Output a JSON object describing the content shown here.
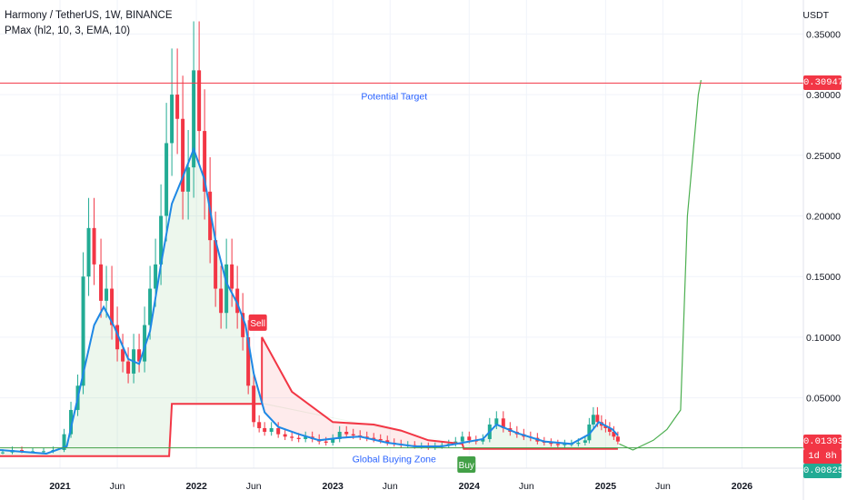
{
  "chart_data": {
    "type": "candlestick",
    "title": "Harmony / TetherUS, 1W, BINANCE",
    "subtitle": "PMax (hl2, 10, 3, EMA, 10)",
    "currency": "USDT",
    "y_ticks": [
      "0.35000",
      "0.30000",
      "0.25000",
      "0.20000",
      "0.15000",
      "0.10000",
      "0.05000"
    ],
    "y_tick_values": [
      0.35,
      0.3,
      0.25,
      0.2,
      0.15,
      0.1,
      0.05
    ],
    "ylim": [
      -0.008,
      0.378
    ],
    "x_ticks": [
      "2021",
      "Jun",
      "2022",
      "Jun",
      "2023",
      "Jun",
      "2024",
      "Jun",
      "2025",
      "Jun",
      "2026"
    ],
    "x_tick_values": [
      2021.0,
      2021.42,
      2022.0,
      2022.42,
      2023.0,
      2023.42,
      2024.0,
      2024.42,
      2025.0,
      2025.42,
      2026.0
    ],
    "xlim": [
      2020.56,
      2026.45
    ],
    "price_tags": [
      {
        "label": "0.30947",
        "value": 0.30947,
        "color": "#f23645"
      },
      {
        "label": "0.01393",
        "value": 0.01393,
        "color": "#f23645"
      },
      {
        "label": "1d 8h",
        "value": 0.0014,
        "color": "#f23645"
      },
      {
        "label": "0.00825",
        "value": 0.00825,
        "color": "#22ab94"
      }
    ],
    "annotations": [
      {
        "text": "Potential Target",
        "x": 2023.45,
        "y": 0.299,
        "color": "#2962ff"
      },
      {
        "text": "Global Buying Zone",
        "x": 2023.45,
        "y": 0.0,
        "color": "#2962ff"
      }
    ],
    "signals": [
      {
        "text": "Sell",
        "x": 2022.45,
        "y": 0.112,
        "color": "#f23645"
      },
      {
        "text": "Buy",
        "x": 2023.98,
        "y": -0.005,
        "color": "#43a047"
      }
    ],
    "target_line": {
      "value": 0.30947,
      "color": "#f23645"
    },
    "zone_line": {
      "value": 0.0088,
      "color": "#43a047"
    },
    "candles_close": [
      [
        2020.58,
        0.005
      ],
      [
        2020.65,
        0.007
      ],
      [
        2020.72,
        0.006
      ],
      [
        2020.8,
        0.006
      ],
      [
        2020.88,
        0.006
      ],
      [
        2020.95,
        0.007
      ],
      [
        2021.03,
        0.02
      ],
      [
        2021.08,
        0.04
      ],
      [
        2021.13,
        0.06
      ],
      [
        2021.17,
        0.15
      ],
      [
        2021.21,
        0.19
      ],
      [
        2021.25,
        0.16
      ],
      [
        2021.3,
        0.13
      ],
      [
        2021.34,
        0.14
      ],
      [
        2021.38,
        0.11
      ],
      [
        2021.42,
        0.09
      ],
      [
        2021.46,
        0.08
      ],
      [
        2021.5,
        0.07
      ],
      [
        2021.54,
        0.09
      ],
      [
        2021.58,
        0.08
      ],
      [
        2021.62,
        0.11
      ],
      [
        2021.66,
        0.14
      ],
      [
        2021.7,
        0.16
      ],
      [
        2021.74,
        0.2
      ],
      [
        2021.78,
        0.26
      ],
      [
        2021.82,
        0.3
      ],
      [
        2021.86,
        0.28
      ],
      [
        2021.9,
        0.22
      ],
      [
        2021.94,
        0.24
      ],
      [
        2021.98,
        0.32
      ],
      [
        2022.02,
        0.27
      ],
      [
        2022.06,
        0.22
      ],
      [
        2022.1,
        0.18
      ],
      [
        2022.14,
        0.14
      ],
      [
        2022.18,
        0.12
      ],
      [
        2022.22,
        0.16
      ],
      [
        2022.26,
        0.14
      ],
      [
        2022.3,
        0.12
      ],
      [
        2022.34,
        0.1
      ],
      [
        2022.38,
        0.06
      ],
      [
        2022.42,
        0.03
      ],
      [
        2022.46,
        0.025
      ],
      [
        2022.5,
        0.022
      ],
      [
        2022.55,
        0.025
      ],
      [
        2022.6,
        0.02
      ],
      [
        2022.65,
        0.018
      ],
      [
        2022.7,
        0.017
      ],
      [
        2022.75,
        0.016
      ],
      [
        2022.8,
        0.018
      ],
      [
        2022.85,
        0.016
      ],
      [
        2022.9,
        0.014
      ],
      [
        2022.95,
        0.013
      ],
      [
        2023.0,
        0.016
      ],
      [
        2023.05,
        0.022
      ],
      [
        2023.1,
        0.02
      ],
      [
        2023.15,
        0.019
      ],
      [
        2023.2,
        0.018
      ],
      [
        2023.25,
        0.017
      ],
      [
        2023.3,
        0.016
      ],
      [
        2023.35,
        0.015
      ],
      [
        2023.4,
        0.013
      ],
      [
        2023.45,
        0.012
      ],
      [
        2023.5,
        0.011
      ],
      [
        2023.55,
        0.011
      ],
      [
        2023.6,
        0.01
      ],
      [
        2023.65,
        0.01
      ],
      [
        2023.7,
        0.009
      ],
      [
        2023.75,
        0.01
      ],
      [
        2023.8,
        0.011
      ],
      [
        2023.85,
        0.012
      ],
      [
        2023.9,
        0.014
      ],
      [
        2023.95,
        0.018
      ],
      [
        2024.0,
        0.015
      ],
      [
        2024.05,
        0.014
      ],
      [
        2024.1,
        0.016
      ],
      [
        2024.15,
        0.028
      ],
      [
        2024.2,
        0.033
      ],
      [
        2024.25,
        0.025
      ],
      [
        2024.3,
        0.022
      ],
      [
        2024.35,
        0.02
      ],
      [
        2024.4,
        0.018
      ],
      [
        2024.45,
        0.017
      ],
      [
        2024.5,
        0.014
      ],
      [
        2024.55,
        0.013
      ],
      [
        2024.6,
        0.012
      ],
      [
        2024.65,
        0.011
      ],
      [
        2024.7,
        0.012
      ],
      [
        2024.75,
        0.012
      ],
      [
        2024.8,
        0.013
      ],
      [
        2024.85,
        0.015
      ],
      [
        2024.88,
        0.028
      ],
      [
        2024.91,
        0.036
      ],
      [
        2024.94,
        0.03
      ],
      [
        2024.97,
        0.027
      ],
      [
        2025.0,
        0.025
      ],
      [
        2025.03,
        0.022
      ],
      [
        2025.06,
        0.018
      ],
      [
        2025.09,
        0.014
      ]
    ],
    "ema_line": [
      [
        2020.56,
        0.007
      ],
      [
        2020.9,
        0.004
      ],
      [
        2021.05,
        0.01
      ],
      [
        2021.15,
        0.06
      ],
      [
        2021.25,
        0.11
      ],
      [
        2021.32,
        0.125
      ],
      [
        2021.4,
        0.108
      ],
      [
        2021.5,
        0.082
      ],
      [
        2021.58,
        0.078
      ],
      [
        2021.66,
        0.105
      ],
      [
        2021.74,
        0.16
      ],
      [
        2021.82,
        0.21
      ],
      [
        2021.9,
        0.232
      ],
      [
        2021.98,
        0.255
      ],
      [
        2022.06,
        0.23
      ],
      [
        2022.14,
        0.18
      ],
      [
        2022.22,
        0.145
      ],
      [
        2022.3,
        0.128
      ],
      [
        2022.36,
        0.11
      ],
      [
        2022.42,
        0.07
      ],
      [
        2022.5,
        0.038
      ],
      [
        2022.6,
        0.026
      ],
      [
        2022.75,
        0.02
      ],
      [
        2022.9,
        0.015
      ],
      [
        2023.05,
        0.017
      ],
      [
        2023.2,
        0.018
      ],
      [
        2023.4,
        0.013
      ],
      [
        2023.6,
        0.01
      ],
      [
        2023.8,
        0.01
      ],
      [
        2023.95,
        0.013
      ],
      [
        2024.1,
        0.016
      ],
      [
        2024.2,
        0.028
      ],
      [
        2024.35,
        0.021
      ],
      [
        2024.55,
        0.014
      ],
      [
        2024.75,
        0.012
      ],
      [
        2024.88,
        0.02
      ],
      [
        2024.95,
        0.03
      ],
      [
        2025.05,
        0.024
      ],
      [
        2025.09,
        0.019
      ]
    ],
    "pmax_line": [
      [
        2020.56,
        0.002
      ],
      [
        2021.8,
        0.002
      ],
      [
        2021.82,
        0.045
      ],
      [
        2022.48,
        0.045
      ],
      [
        2022.48,
        0.1
      ],
      [
        2022.7,
        0.055
      ],
      [
        2023.0,
        0.03
      ],
      [
        2023.3,
        0.028
      ],
      [
        2023.5,
        0.023
      ],
      [
        2023.7,
        0.015
      ],
      [
        2023.95,
        0.012
      ],
      [
        2023.96,
        0.008
      ],
      [
        2025.09,
        0.008
      ]
    ],
    "projection_line": [
      [
        2025.1,
        0.012
      ],
      [
        2025.2,
        0.007
      ],
      [
        2025.35,
        0.015
      ],
      [
        2025.45,
        0.024
      ],
      [
        2025.55,
        0.04
      ],
      [
        2025.6,
        0.2
      ],
      [
        2025.68,
        0.3
      ],
      [
        2025.7,
        0.312
      ]
    ]
  }
}
